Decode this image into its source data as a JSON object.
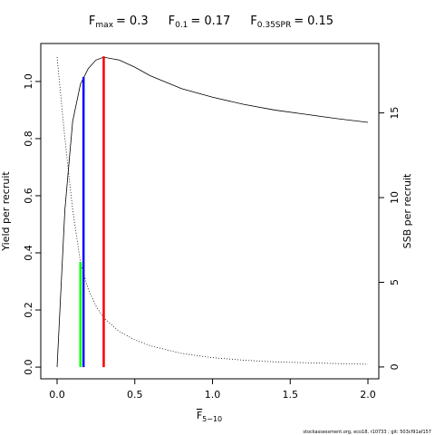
{
  "chart_data": {
    "type": "line",
    "reference_points": [
      {
        "symbol": "F",
        "sub": "max",
        "eq": "=",
        "value": 0.3,
        "height": 1.088,
        "axis": "y",
        "color": "#ff0000"
      },
      {
        "symbol": "F",
        "sub": "0.1",
        "eq": "=",
        "value": 0.17,
        "height": 1.016,
        "axis": "y",
        "color": "#0000ff"
      },
      {
        "symbol": "F",
        "sub": "0.35SPR",
        "eq": "=",
        "value": 0.15,
        "height": 6.2,
        "axis": "y2",
        "color": "#00ff00"
      }
    ],
    "x_label": {
      "text": "F",
      "sub": "5−10"
    },
    "y_label": "Yield per recruit",
    "y2_label": "SSB per recruit",
    "footer": "stockassessment.org, eco18, r10733 ; git: 503cf91af157",
    "x": [
      0,
      0.05,
      0.1,
      0.15,
      0.2,
      0.25,
      0.3,
      0.4,
      0.5,
      0.6,
      0.8,
      1.0,
      1.2,
      1.4,
      1.6,
      1.8,
      2.0
    ],
    "series": [
      {
        "color": "#000000",
        "style": "solid",
        "axis": "y",
        "values": [
          0,
          0.55,
          0.86,
          0.99,
          1.045,
          1.075,
          1.085,
          1.075,
          1.05,
          1.02,
          0.975,
          0.945,
          0.92,
          0.9,
          0.885,
          0.87,
          0.857
        ]
      },
      {
        "color": "#000000",
        "style": "dotted",
        "axis": "y2",
        "values": [
          18.3,
          13.5,
          9.3,
          6.2,
          4.6,
          3.6,
          2.9,
          2.1,
          1.6,
          1.25,
          0.8,
          0.55,
          0.4,
          0.3,
          0.25,
          0.2,
          0.16
        ]
      }
    ],
    "xlim": [
      -0.105,
      2.07
    ],
    "xticks": [
      {
        "value": 0,
        "label": "0.0"
      },
      {
        "value": 0.5,
        "label": "0.5"
      },
      {
        "value": 1,
        "label": "1.0"
      },
      {
        "value": 1.5,
        "label": "1.5"
      },
      {
        "value": 2,
        "label": "2.0"
      }
    ],
    "ylim": [
      -0.041,
      1.133
    ],
    "yticks": [
      {
        "value": 0,
        "label": "0.0"
      },
      {
        "value": 0.2,
        "label": "0.2"
      },
      {
        "value": 0.4,
        "label": "0.4"
      },
      {
        "value": 0.6,
        "label": "0.6"
      },
      {
        "value": 0.8,
        "label": "0.8"
      },
      {
        "value": 1,
        "label": "1.0"
      }
    ],
    "y2lim": [
      -0.7,
      19.1
    ],
    "y2ticks": [
      0,
      5,
      10,
      15
    ]
  }
}
